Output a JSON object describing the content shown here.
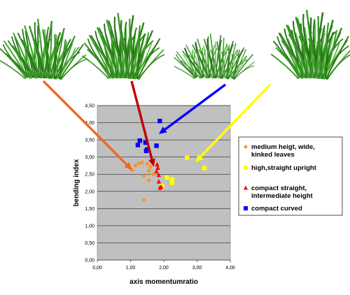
{
  "chart_data": {
    "type": "scatter",
    "xlabel": "axis momentumratio",
    "ylabel": "bending index",
    "xlim": [
      0,
      4
    ],
    "ylim": [
      0,
      4.5
    ],
    "xticks": [
      "0,00",
      "1,00",
      "2,00",
      "3,00",
      "4,00"
    ],
    "yticks": [
      "0,00",
      "0,50",
      "1,00",
      "1,50",
      "2,00",
      "2,50",
      "3,00",
      "3,50",
      "4,00",
      "4,50"
    ],
    "grid": "horizontal",
    "background": "#c0c0c0",
    "legend_position": "right",
    "series": [
      {
        "name": "medium heigt, wide, kinked leaves",
        "marker": "diamond",
        "color": "#f7941d",
        "points": [
          [
            1.05,
            2.62
          ],
          [
            1.15,
            2.75
          ],
          [
            1.25,
            2.82
          ],
          [
            1.35,
            2.84
          ],
          [
            1.5,
            2.8
          ],
          [
            1.6,
            2.72
          ],
          [
            1.68,
            2.5
          ],
          [
            1.55,
            2.6
          ],
          [
            1.4,
            2.45
          ],
          [
            1.55,
            2.32
          ],
          [
            1.4,
            1.75
          ]
        ]
      },
      {
        "name": "high,straight upright",
        "marker": "square",
        "color": "#ffff00",
        "points": [
          [
            1.95,
            2.15
          ],
          [
            2.1,
            2.4
          ],
          [
            2.25,
            2.35
          ],
          [
            2.25,
            2.25
          ],
          [
            2.7,
            2.98
          ],
          [
            3.22,
            2.68
          ]
        ]
      },
      {
        "name": "compact straight, intermediate height",
        "marker": "triangle",
        "color": "#ff0000",
        "points": [
          [
            1.8,
            2.78
          ],
          [
            1.82,
            2.68
          ],
          [
            1.78,
            2.58
          ],
          [
            1.85,
            2.47
          ],
          [
            1.85,
            2.28
          ],
          [
            1.92,
            2.13
          ],
          [
            1.88,
            2.1
          ]
        ]
      },
      {
        "name": "compact curved",
        "marker": "square",
        "color": "#0000ff",
        "points": [
          [
            1.22,
            3.35
          ],
          [
            1.28,
            3.48
          ],
          [
            1.45,
            3.42
          ],
          [
            1.5,
            3.22
          ],
          [
            1.47,
            3.18
          ],
          [
            1.78,
            3.33
          ],
          [
            1.88,
            4.05
          ]
        ]
      }
    ],
    "arrows": [
      {
        "color": "#f26522",
        "from": "plant-1",
        "to": [
          1.05,
          2.62
        ]
      },
      {
        "color": "#c00000",
        "from": "plant-2",
        "to": [
          1.7,
          2.72
        ]
      },
      {
        "color": "#0000ff",
        "from": "plant-3",
        "to": [
          1.85,
          3.67
        ]
      },
      {
        "color": "#ffff00",
        "from": "plant-4",
        "to": [
          2.95,
          2.85
        ]
      }
    ]
  },
  "images": [
    {
      "name": "plant-medium-wide"
    },
    {
      "name": "plant-compact-straight"
    },
    {
      "name": "plant-compact-curved"
    },
    {
      "name": "plant-high-upright"
    }
  ]
}
